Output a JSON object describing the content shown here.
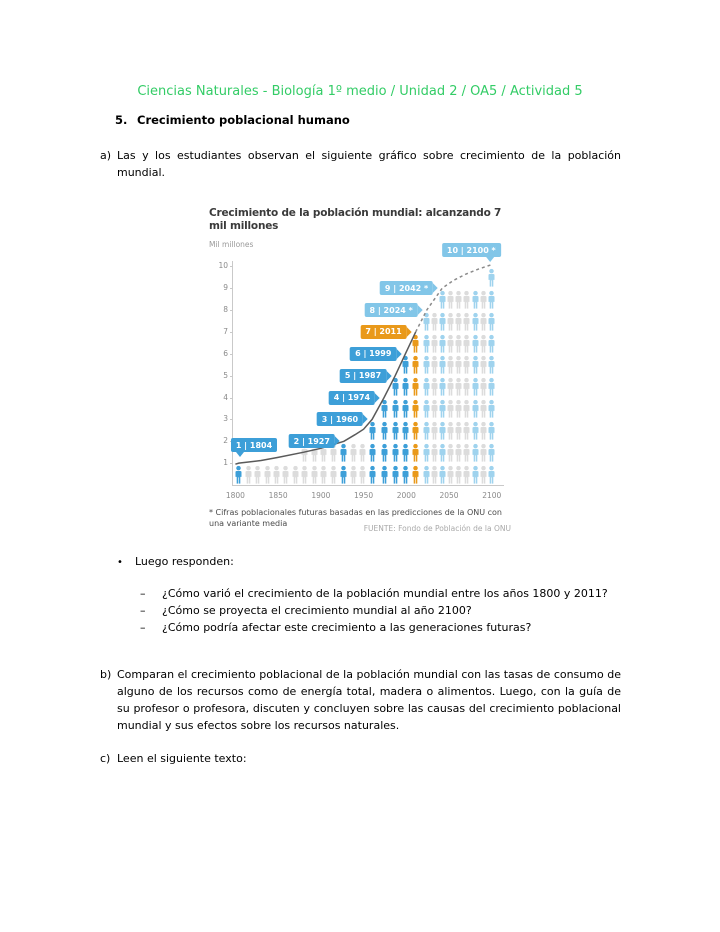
{
  "header": {
    "title": "Ciencias Naturales - Biología 1º medio / Unidad 2 / OA5 / Actividad 5"
  },
  "section": {
    "number": "5.",
    "title": "Crecimiento poblacional humano"
  },
  "item_a": {
    "marker": "a)",
    "text": "Las y los estudiantes observan el siguiente gráfico sobre crecimiento de la población mundial."
  },
  "bullet": {
    "symbol": "•",
    "label": "Luego responden:"
  },
  "questions": [
    {
      "marker": "–",
      "text": "¿Cómo varió el crecimiento de la población mundial entre los años 1800 y 2011?"
    },
    {
      "marker": "–",
      "text": "¿Cómo se proyecta el crecimiento mundial al año 2100?"
    },
    {
      "marker": "–",
      "text": "¿Cómo podría afectar este crecimiento a las generaciones futuras?"
    }
  ],
  "item_b": {
    "marker": "b)",
    "text": "Comparan el crecimiento poblacional de la población mundial con las tasas de consumo de alguno de los recursos como de energía total, madera o alimentos. Luego, con la guía de su profesor o profesora, discuten y concluyen sobre las causas del crecimiento poblacional mundial y sus efectos sobre los recursos naturales."
  },
  "item_c": {
    "marker": "c)",
    "text": "Leen el siguiente texto:"
  },
  "colors": {
    "header_green": "#33cc66",
    "flag_past": "#3d9fd8",
    "flag_current": "#e9991a",
    "flag_future": "#82c6e8",
    "icon_past": "#3d9fd8",
    "icon_current": "#e9991a",
    "icon_future": "#9fd3ee",
    "icon_plain": "#dcdcdc",
    "curve_solid": "#5a5a5a",
    "curve_dashed": "#8a8a8a"
  },
  "chart_data": {
    "type": "pictogram-line",
    "title": "Crecimiento de la población mundial: alcanzando 7 mil millones",
    "ylabel": "Mil millones",
    "xlabel": "",
    "x_ticks": [
      1800,
      1850,
      1900,
      1950,
      2000,
      2050,
      2100
    ],
    "y_ticks": [
      1,
      2,
      3,
      4,
      5,
      6,
      7,
      8,
      9,
      10
    ],
    "xlim": [
      1796,
      2112
    ],
    "ylim": [
      0,
      10.7
    ],
    "grid": false,
    "footnote": "* Cifras poblacionales futuras basadas en las predicciones de la ONU con una variante media",
    "source": "FUENTE: Fondo de Población de la ONU",
    "milestones": [
      {
        "label": "1 | 1804",
        "year": 1804,
        "value": 1,
        "kind": "past"
      },
      {
        "label": "2 | 1927",
        "year": 1927,
        "value": 2,
        "kind": "past"
      },
      {
        "label": "3 | 1960",
        "year": 1960,
        "value": 3,
        "kind": "past"
      },
      {
        "label": "4 | 1974",
        "year": 1974,
        "value": 4,
        "kind": "past"
      },
      {
        "label": "5 | 1987",
        "year": 1987,
        "value": 5,
        "kind": "past"
      },
      {
        "label": "6 | 1999",
        "year": 1999,
        "value": 6,
        "kind": "past"
      },
      {
        "label": "7 | 2011",
        "year": 2011,
        "value": 7,
        "kind": "current"
      },
      {
        "label": "8 | 2024 *",
        "year": 2024,
        "value": 8,
        "kind": "future"
      },
      {
        "label": "9 | 2042 *",
        "year": 2042,
        "value": 9,
        "kind": "future"
      },
      {
        "label": "10 | 2100 *",
        "year": 2100,
        "value": 10,
        "kind": "future"
      }
    ],
    "columns": [
      {
        "year": 1804,
        "icons": 1,
        "kind": "past"
      },
      {
        "year": 1815,
        "icons": 1,
        "kind": "plain"
      },
      {
        "year": 1826,
        "icons": 1,
        "kind": "plain"
      },
      {
        "year": 1837,
        "icons": 1,
        "kind": "plain"
      },
      {
        "year": 1848,
        "icons": 1,
        "kind": "plain"
      },
      {
        "year": 1859,
        "icons": 1,
        "kind": "plain"
      },
      {
        "year": 1870,
        "icons": 1,
        "kind": "plain"
      },
      {
        "year": 1881,
        "icons": 2,
        "kind": "plain"
      },
      {
        "year": 1892,
        "icons": 2,
        "kind": "plain"
      },
      {
        "year": 1903,
        "icons": 2,
        "kind": "plain"
      },
      {
        "year": 1915,
        "icons": 2,
        "kind": "plain"
      },
      {
        "year": 1927,
        "icons": 2,
        "kind": "past"
      },
      {
        "year": 1938,
        "icons": 2,
        "kind": "plain"
      },
      {
        "year": 1949,
        "icons": 2,
        "kind": "plain"
      },
      {
        "year": 1960,
        "icons": 3,
        "kind": "past"
      },
      {
        "year": 1974,
        "icons": 4,
        "kind": "past"
      },
      {
        "year": 1987,
        "icons": 5,
        "kind": "past"
      },
      {
        "year": 1999,
        "icons": 6,
        "kind": "past"
      },
      {
        "year": 2011,
        "icons": 7,
        "kind": "current"
      },
      {
        "year": 2024,
        "icons": 8,
        "kind": "future"
      },
      {
        "year": 2033,
        "icons": 8,
        "kind": "plain"
      },
      {
        "year": 2042,
        "icons": 9,
        "kind": "future"
      },
      {
        "year": 2052,
        "icons": 9,
        "kind": "plain"
      },
      {
        "year": 2061,
        "icons": 9,
        "kind": "plain"
      },
      {
        "year": 2071,
        "icons": 9,
        "kind": "plain"
      },
      {
        "year": 2081,
        "icons": 9,
        "kind": "future"
      },
      {
        "year": 2090,
        "icons": 9,
        "kind": "plain"
      },
      {
        "year": 2100,
        "icons": 10,
        "kind": "future"
      }
    ],
    "curve_past": [
      [
        1800,
        0.95
      ],
      [
        1804,
        1
      ],
      [
        1830,
        1.12
      ],
      [
        1850,
        1.26
      ],
      [
        1880,
        1.5
      ],
      [
        1900,
        1.68
      ],
      [
        1927,
        2
      ],
      [
        1940,
        2.3
      ],
      [
        1950,
        2.55
      ],
      [
        1960,
        3
      ],
      [
        1974,
        4
      ],
      [
        1987,
        5
      ],
      [
        1999,
        6
      ],
      [
        2011,
        7
      ]
    ],
    "curve_future": [
      [
        2011,
        7
      ],
      [
        2024,
        8
      ],
      [
        2042,
        9
      ],
      [
        2055,
        9.35
      ],
      [
        2070,
        9.65
      ],
      [
        2085,
        9.88
      ],
      [
        2100,
        10.08
      ]
    ]
  }
}
